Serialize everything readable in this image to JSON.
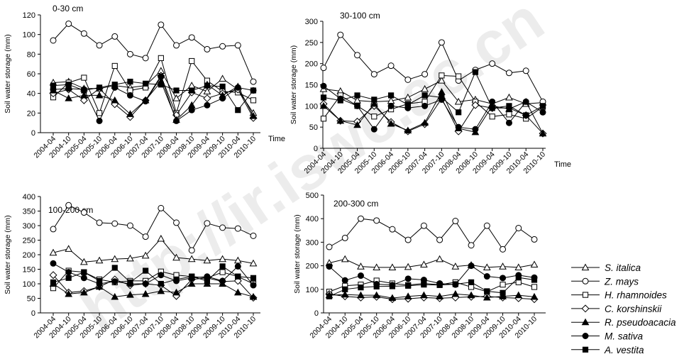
{
  "watermark": "http://ir.iswc.ac.cn",
  "legend": [
    {
      "name": "S. italica",
      "marker": "triangle-open"
    },
    {
      "name": "Z. mays",
      "marker": "circle-open"
    },
    {
      "name": "H. rhamnoides",
      "marker": "square-open"
    },
    {
      "name": "C. korshinskii",
      "marker": "diamond-open"
    },
    {
      "name": "R. pseudoacacia",
      "marker": "triangle-filled"
    },
    {
      "name": "M. sativa",
      "marker": "circle-filled"
    },
    {
      "name": "A. vestita",
      "marker": "square-filled"
    }
  ],
  "chart_data": [
    {
      "type": "line",
      "title": "0-30 cm",
      "xlabel": "Time",
      "ylabel": "Soil water storage (mm)",
      "ylim": [
        0,
        120
      ],
      "yticks": [
        0,
        20,
        40,
        60,
        80,
        100,
        120
      ],
      "show_time_label": true,
      "categories": [
        "2004-04",
        "2004-10",
        "2005-04",
        "2005-10",
        "2006-04",
        "2006-10",
        "2007-04",
        "2007-10",
        "2008-04",
        "2008-10",
        "2009-04",
        "2009-10",
        "2010-04",
        "2010-10"
      ],
      "series": [
        {
          "name": "S. italica",
          "values": [
            51,
            52,
            45,
            45,
            48,
            46,
            48,
            63,
            35,
            48,
            42,
            55,
            44,
            20
          ]
        },
        {
          "name": "Z. mays",
          "values": [
            94,
            111,
            101,
            89,
            98,
            80,
            76,
            110,
            89,
            97,
            85,
            88,
            89,
            52
          ]
        },
        {
          "name": "H. rhamnoides",
          "values": [
            36,
            51,
            56,
            20,
            68,
            43,
            46,
            76,
            20,
            73,
            53,
            42,
            41,
            33
          ]
        },
        {
          "name": "C. korshinskii",
          "values": [
            40,
            44,
            33,
            45,
            29,
            16,
            33,
            58,
            18,
            41,
            35,
            40,
            44,
            15
          ]
        },
        {
          "name": "R. pseudoacacia",
          "values": [
            43,
            35,
            38,
            38,
            33,
            19,
            33,
            52,
            13,
            28,
            49,
            38,
            47,
            17
          ]
        },
        {
          "name": "M. sativa",
          "values": [
            44,
            45,
            44,
            12,
            46,
            38,
            32,
            57,
            12,
            23,
            28,
            35,
            46,
            43
          ]
        },
        {
          "name": "A. vestita",
          "values": [
            48,
            49,
            43,
            46,
            49,
            52,
            50,
            49,
            43,
            43,
            48,
            47,
            23,
            43
          ]
        }
      ]
    },
    {
      "type": "line",
      "title": "30-100 cm",
      "xlabel": "Time",
      "ylabel": "Soil water storage (mm)",
      "ylim": [
        0,
        300
      ],
      "yticks": [
        0,
        50,
        100,
        150,
        200,
        250,
        300
      ],
      "show_time_label": true,
      "categories": [
        "2004-04",
        "2004-10",
        "2005-04",
        "2005-10",
        "2006-04",
        "2006-10",
        "2007-04",
        "2007-10",
        "2008-04",
        "2008-10",
        "2009-04",
        "2009-10",
        "2010-04",
        "2010-10"
      ],
      "series": [
        {
          "name": "S. italica",
          "values": [
            140,
            135,
            113,
            110,
            112,
            120,
            140,
            160,
            110,
            115,
            105,
            120,
            105,
            108
          ]
        },
        {
          "name": "Z. mays",
          "values": [
            190,
            268,
            220,
            175,
            195,
            162,
            175,
            250,
            160,
            185,
            200,
            178,
            183,
            110
          ]
        },
        {
          "name": "H. rhamnoides",
          "values": [
            70,
            125,
            100,
            75,
            92,
            105,
            110,
            172,
            170,
            110,
            75,
            80,
            70,
            98
          ]
        },
        {
          "name": "C. korshinskii",
          "values": [
            105,
            65,
            63,
            100,
            62,
            40,
            57,
            118,
            40,
            102,
            95,
            95,
            78,
            35
          ]
        },
        {
          "name": "R. pseudoacacia",
          "values": [
            100,
            65,
            55,
            105,
            58,
            42,
            60,
            133,
            47,
            38,
            100,
            93,
            110,
            35
          ]
        },
        {
          "name": "M. sativa",
          "values": [
            147,
            117,
            100,
            45,
            100,
            95,
            100,
            115,
            50,
            45,
            110,
            60,
            110,
            85
          ]
        },
        {
          "name": "A. vestita",
          "values": [
            120,
            113,
            125,
            115,
            125,
            103,
            125,
            120,
            85,
            180,
            95,
            100,
            78,
            100
          ]
        }
      ]
    },
    {
      "type": "line",
      "title": "100-200 cm",
      "xlabel": "Time",
      "ylabel": "Soil water storage (mm)",
      "ylim": [
        0,
        400
      ],
      "yticks": [
        0,
        50,
        100,
        150,
        200,
        250,
        300,
        350,
        400
      ],
      "show_time_label": false,
      "categories": [
        "2004-04",
        "2004-10",
        "2005-04",
        "2005-10",
        "2006-04",
        "2006-10",
        "2007-04",
        "2007-10",
        "2008-04",
        "2008-10",
        "2009-04",
        "2009-10",
        "2010-04",
        "2010-10"
      ],
      "series": [
        {
          "name": "S. italica",
          "values": [
            207,
            220,
            175,
            180,
            185,
            187,
            197,
            255,
            190,
            185,
            180,
            185,
            180,
            170
          ]
        },
        {
          "name": "Z. mays",
          "values": [
            288,
            370,
            345,
            310,
            307,
            300,
            262,
            360,
            310,
            215,
            308,
            293,
            290,
            265
          ]
        },
        {
          "name": "H. rhamnoides",
          "values": [
            85,
            145,
            140,
            115,
            105,
            110,
            110,
            142,
            130,
            125,
            120,
            140,
            125,
            100
          ]
        },
        {
          "name": "C. korshinskii",
          "values": [
            130,
            70,
            75,
            90,
            115,
            95,
            100,
            95,
            58,
            115,
            120,
            108,
            110,
            52
          ]
        },
        {
          "name": "R. pseudoacacia",
          "values": [
            100,
            65,
            70,
            90,
            55,
            62,
            65,
            75,
            70,
            100,
            100,
            100,
            70,
            55
          ]
        },
        {
          "name": "M. sativa",
          "values": [
            170,
            140,
            120,
            100,
            108,
            100,
            100,
            130,
            110,
            120,
            125,
            110,
            160,
            95
          ]
        },
        {
          "name": "A. vestita",
          "values": [
            105,
            120,
            140,
            110,
            155,
            105,
            145,
            100,
            115,
            125,
            110,
            160,
            125,
            120
          ]
        }
      ]
    },
    {
      "type": "line",
      "title": "200-300 cm",
      "xlabel": "Time",
      "ylabel": "Soil water storage (mm)",
      "ylim": [
        0,
        500
      ],
      "yticks": [
        0,
        100,
        200,
        300,
        400,
        500
      ],
      "show_time_label": false,
      "categories": [
        "2004-04",
        "2004-10",
        "2005-04",
        "2005-10",
        "2006-04",
        "2006-10",
        "2007-04",
        "2007-10",
        "2008-04",
        "2008-10",
        "2009-04",
        "2009-10",
        "2010-04",
        "2010-10"
      ],
      "series": [
        {
          "name": "S. italica",
          "values": [
            212,
            228,
            197,
            193,
            193,
            195,
            205,
            228,
            197,
            203,
            193,
            197,
            193,
            205
          ]
        },
        {
          "name": "Z. mays",
          "values": [
            280,
            318,
            400,
            392,
            355,
            310,
            370,
            310,
            390,
            287,
            370,
            270,
            360,
            312
          ]
        },
        {
          "name": "H. rhamnoides",
          "values": [
            90,
            115,
            120,
            137,
            125,
            118,
            125,
            120,
            130,
            110,
            90,
            120,
            130,
            110
          ]
        },
        {
          "name": "C. korshinskii",
          "values": [
            80,
            70,
            65,
            68,
            58,
            60,
            65,
            62,
            65,
            68,
            70,
            65,
            62,
            58
          ]
        },
        {
          "name": "R. pseudoacacia",
          "values": [
            75,
            78,
            75,
            75,
            63,
            70,
            75,
            70,
            80,
            75,
            65,
            70,
            75,
            68
          ]
        },
        {
          "name": "M. sativa",
          "values": [
            197,
            138,
            158,
            122,
            118,
            145,
            140,
            125,
            120,
            200,
            155,
            148,
            160,
            150
          ]
        },
        {
          "name": "A. vestita",
          "values": [
            70,
            100,
            108,
            112,
            113,
            115,
            120,
            118,
            122,
            130,
            92,
            85,
            150,
            140
          ]
        }
      ]
    }
  ]
}
